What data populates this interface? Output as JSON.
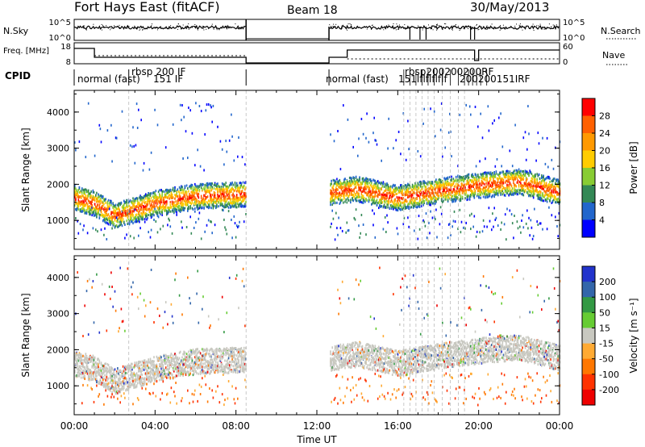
{
  "header": {
    "title": "Fort Hays East (fitACF)",
    "beam": "Beam 18",
    "date": "30/May/2013"
  },
  "strip_labels": {
    "nsky": "N.Sky",
    "nsky_ticks": [
      "10^5",
      "10^0"
    ],
    "nsearch": "N.Search",
    "nsearch_ticks": [
      "10^5",
      "10^0"
    ],
    "freq": "Freq. [MHz]",
    "freq_ticks": [
      "18",
      "8"
    ],
    "nave": "Nave",
    "nave_ticks": [
      "60",
      "0"
    ],
    "cpid": "CPID"
  },
  "cpid_labels": [
    {
      "text": "normal (fast)",
      "start": "00:00"
    },
    {
      "text": "rbsp 200 IF",
      "start": "02:40"
    },
    {
      "text": "151 IF",
      "start": "03:45"
    },
    {
      "text": "normal (fast)",
      "start": "12:00"
    },
    {
      "text": "151lflflflflf",
      "start": "16:30"
    },
    {
      "text": "rbsp200200200RF",
      "start": "17:00"
    },
    {
      "text": "200200151IRF",
      "start": "19:20"
    }
  ],
  "colorbars": {
    "power": {
      "label": "Power [dB]",
      "ticks": [
        "28",
        "24",
        "20",
        "16",
        "12",
        "8",
        "4"
      ],
      "colors": [
        "#ff0000",
        "#ff6000",
        "#ff9900",
        "#ffcc00",
        "#88cc33",
        "#338855",
        "#2266cc",
        "#0000ff"
      ]
    },
    "velocity": {
      "label": "Velocity [m s⁻¹]",
      "ticks": [
        "200",
        "100",
        "50",
        "15",
        "-15",
        "-50",
        "-100",
        "-200"
      ],
      "colors": [
        "#2233cc",
        "#3366aa",
        "#339944",
        "#66cc33",
        "#c8c8c0",
        "#ffaa33",
        "#ff7700",
        "#ff3300",
        "#ee0000"
      ]
    }
  },
  "x_axis": {
    "label": "Time UT",
    "ticks": [
      "00:00",
      "04:00",
      "08:00",
      "12:00",
      "16:00",
      "20:00",
      "00:00"
    ]
  },
  "chart_data": [
    {
      "type": "heatmap",
      "name": "power",
      "xlabel": "Time UT",
      "ylabel": "Slant Range [km]",
      "xlim": [
        0,
        24
      ],
      "ylim": [
        200,
        4600
      ],
      "yticks": [
        "4000",
        "3000",
        "2000",
        "1000"
      ],
      "data_gaps_hours": [
        [
          8.5,
          12.6
        ]
      ],
      "main_echo_band": [
        {
          "t": 0.0,
          "range_km": 1650
        },
        {
          "t": 1.0,
          "range_km": 1500
        },
        {
          "t": 2.0,
          "range_km": 1150
        },
        {
          "t": 4.0,
          "range_km": 1500
        },
        {
          "t": 6.0,
          "range_km": 1700
        },
        {
          "t": 8.5,
          "range_km": 1750
        },
        {
          "t": 12.6,
          "range_km": 1800
        },
        {
          "t": 14.0,
          "range_km": 1900
        },
        {
          "t": 16.0,
          "range_km": 1650
        },
        {
          "t": 18.0,
          "range_km": 1850
        },
        {
          "t": 20.0,
          "range_km": 2000
        },
        {
          "t": 22.0,
          "range_km": 2100
        },
        {
          "t": 24.0,
          "range_km": 1800
        }
      ]
    },
    {
      "type": "heatmap",
      "name": "velocity",
      "xlabel": "Time UT",
      "ylabel": "Slant Range [km]",
      "xlim": [
        0,
        24
      ],
      "ylim": [
        200,
        4600
      ],
      "yticks": [
        "4000",
        "3000",
        "2000",
        "1000"
      ],
      "data_gaps_hours": [
        [
          8.5,
          12.6
        ]
      ]
    }
  ]
}
